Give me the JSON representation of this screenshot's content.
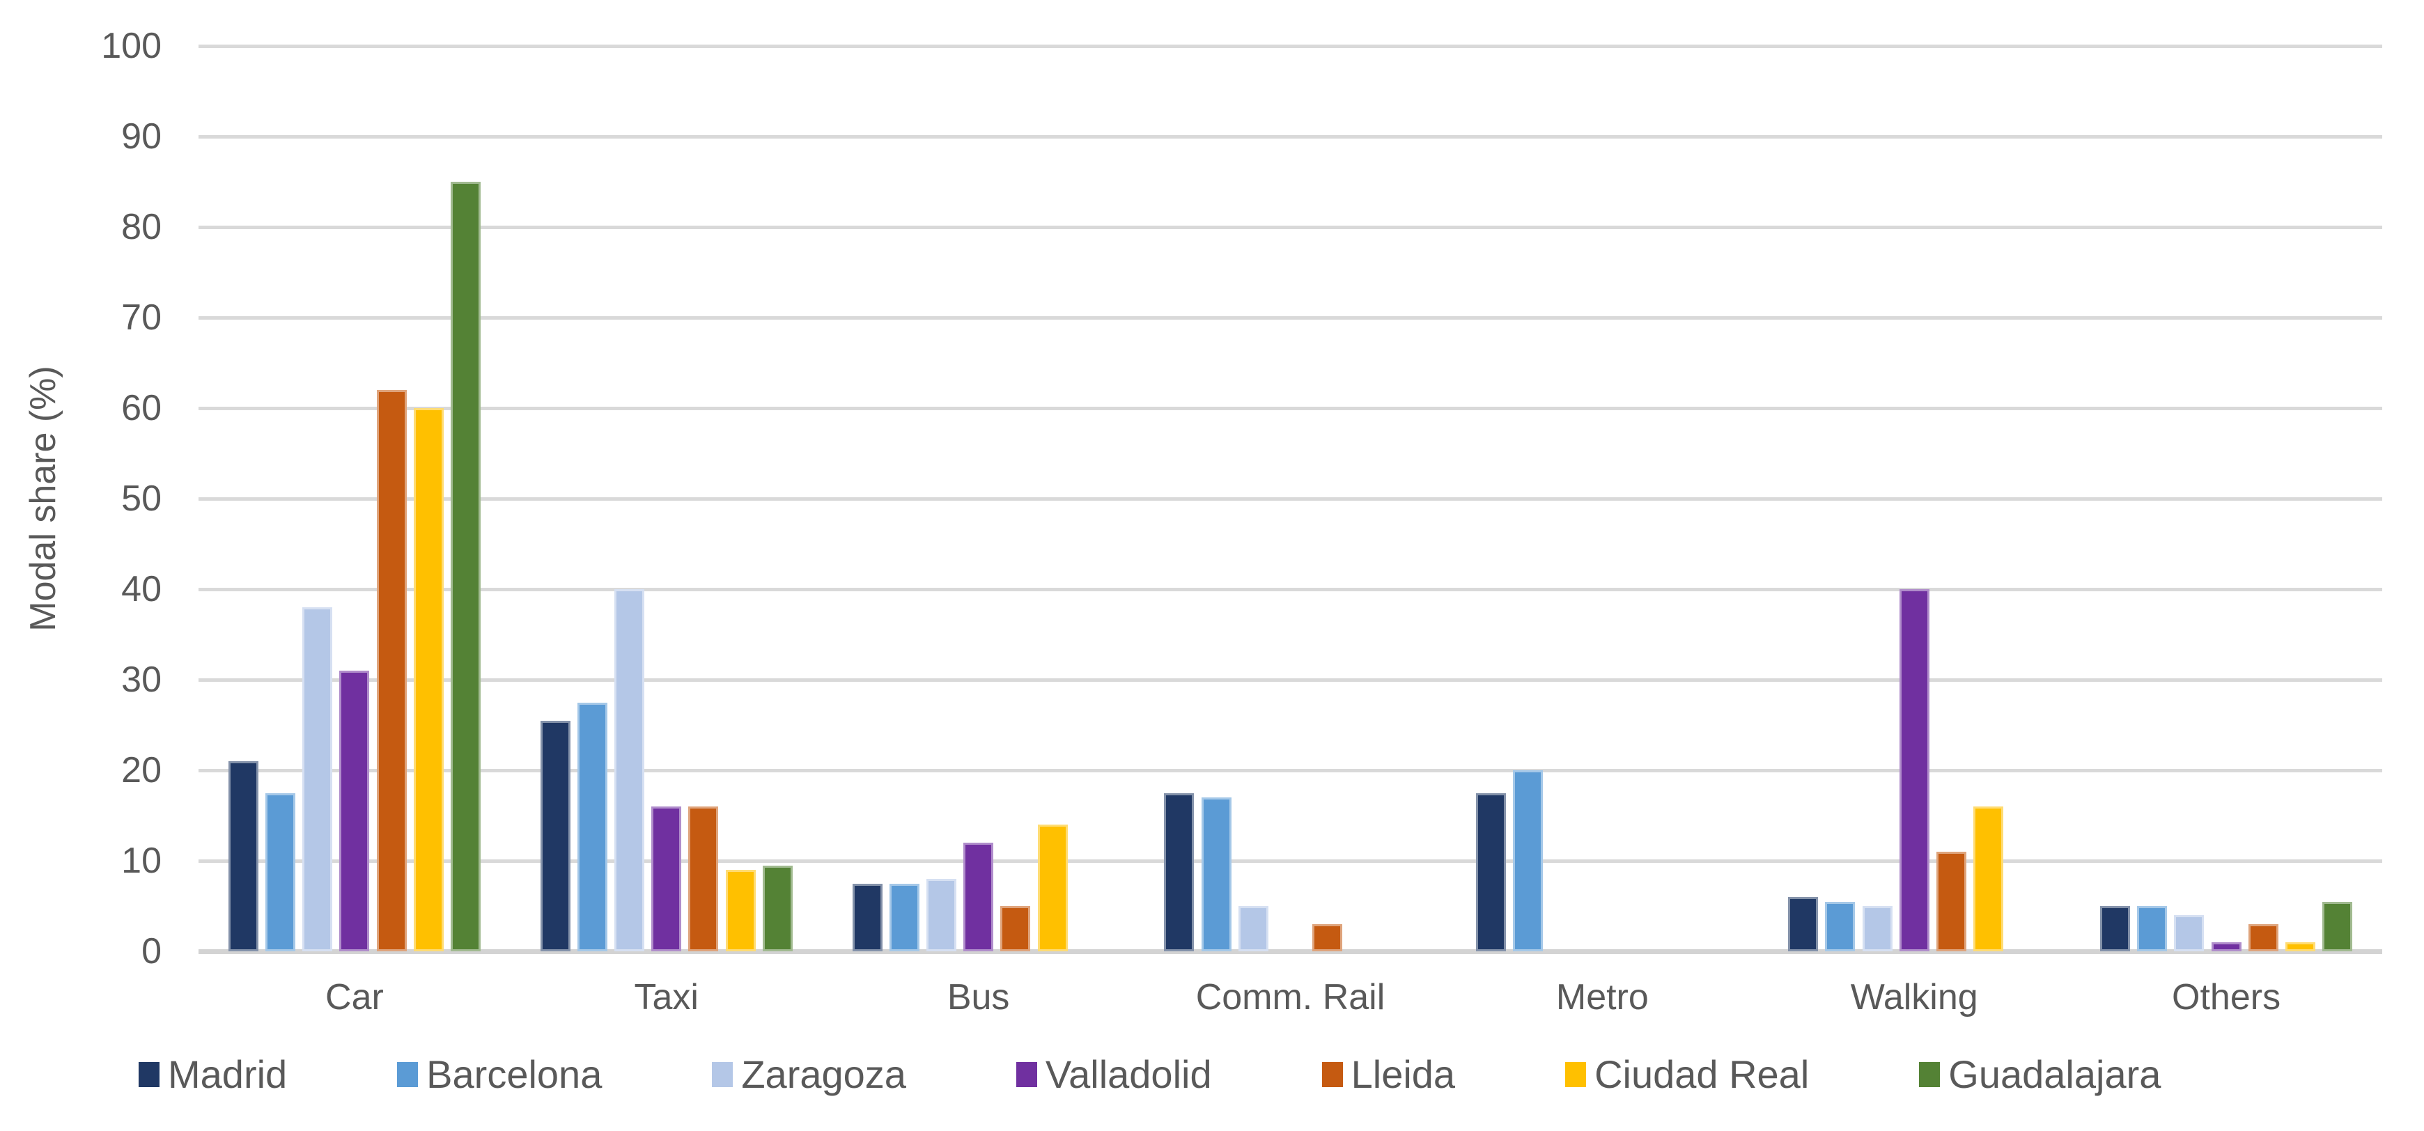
{
  "chart_data": {
    "type": "bar",
    "title": "",
    "ylabel": "Modal share (%)",
    "xlabel": "",
    "ylim": [
      0,
      100
    ],
    "yticks": [
      0,
      10,
      20,
      30,
      40,
      50,
      60,
      70,
      80,
      90,
      100
    ],
    "grid": "horizontal",
    "grid_color": "#d9d9d9",
    "text_color": "#595959",
    "legend_position": "bottom",
    "categories": [
      "Car",
      "Taxi",
      "Bus",
      "Comm. Rail",
      "Metro",
      "Walking",
      "Others"
    ],
    "series": [
      {
        "name": "Madrid",
        "color": "#203864",
        "values": [
          21,
          25.5,
          7.5,
          17.5,
          17.5,
          6,
          5
        ]
      },
      {
        "name": "Barcelona",
        "color": "#5B9BD5",
        "values": [
          17.5,
          27.5,
          7.5,
          17,
          20,
          5.5,
          5
        ]
      },
      {
        "name": "Zaragoza",
        "color": "#B4C7E7",
        "values": [
          38,
          40,
          8,
          5,
          0,
          5,
          4
        ]
      },
      {
        "name": "Valladolid",
        "color": "#7030A0",
        "values": [
          31,
          16,
          12,
          0,
          0,
          40,
          1
        ]
      },
      {
        "name": "Lleida",
        "color": "#C55A11",
        "values": [
          62,
          16,
          5,
          3,
          0,
          11,
          3
        ]
      },
      {
        "name": "Ciudad Real",
        "color": "#FFC000",
        "values": [
          60,
          9,
          14,
          0,
          0,
          16,
          1
        ]
      },
      {
        "name": "Guadalajara",
        "color": "#548235",
        "values": [
          85,
          9.5,
          0,
          0,
          0,
          0,
          5.5
        ]
      }
    ]
  }
}
